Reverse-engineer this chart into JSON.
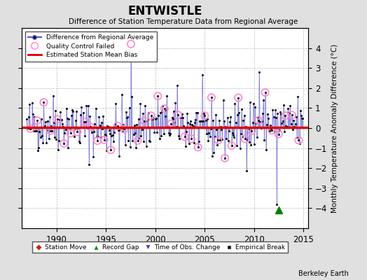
{
  "title": "ENTWISTLE",
  "subtitle": "Difference of Station Temperature Data from Regional Average",
  "ylabel_right": "Monthly Temperature Anomaly Difference (°C)",
  "xlim": [
    1986.5,
    2015.5
  ],
  "ylim": [
    -5,
    5
  ],
  "yticks": [
    -4,
    -3,
    -2,
    -1,
    0,
    1,
    2,
    3,
    4
  ],
  "xticks": [
    1990,
    1995,
    2000,
    2005,
    2010,
    2015
  ],
  "bias_value": 0.05,
  "background_color": "#e0e0e0",
  "plot_bg_color": "#ffffff",
  "line_color": "#5555cc",
  "dot_color": "#111111",
  "bias_color": "#dd0000",
  "qc_color": "#ff88cc",
  "grid_color": "#aaaaaa",
  "watermark": "Berkeley Earth",
  "time_obs_change_x": 1997.5,
  "record_gap_x": 2012.5,
  "seed": 42,
  "n_points": 330
}
